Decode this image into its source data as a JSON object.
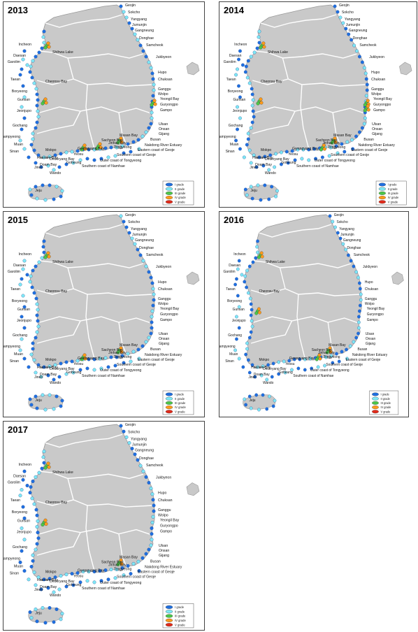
{
  "panels": [
    {
      "year": "2013",
      "legend_text": [
        "I grade",
        "II grade",
        "III grade",
        "IV grade",
        "V grade"
      ],
      "hot": [
        "Incheon",
        "Gunsan",
        "Yeongil Bay",
        "Masan Bay",
        "Gwangyang Bay",
        "Sacheon Bay"
      ]
    },
    {
      "year": "2014",
      "legend_text": [
        "I grade",
        "II grade",
        "III grade",
        "IV grade",
        "V grade"
      ],
      "hot": [
        "Incheon",
        "Gunsan",
        "Yeongil Bay",
        "Guryongpo",
        "Masan Bay",
        "Jinhae Bay"
      ]
    },
    {
      "year": "2015",
      "legend_text": [
        "I grade",
        "II grade",
        "III grade",
        "IV grade",
        "V grade"
      ],
      "hot": [
        "Incheon",
        "Masan Bay",
        "Gwangyang Bay"
      ]
    },
    {
      "year": "2016",
      "legend_text": [
        "I grade",
        "II grade",
        "III grade",
        "IV grade",
        "V grade"
      ],
      "hot": [
        "Incheon",
        "Gunsan",
        "Masan Bay",
        "Jinhae Bay"
      ]
    },
    {
      "year": "2017",
      "legend_text": [
        "I grade",
        "II grade",
        "III grade",
        "IV grade",
        "V grade"
      ],
      "hot": [
        "Incheon",
        "Masan Bay",
        "Gunsan"
      ]
    }
  ],
  "labels": [
    {
      "t": "Geojin",
      "side": "r"
    },
    {
      "t": "Sokcho",
      "side": "r"
    },
    {
      "t": "Yangyang",
      "side": "r"
    },
    {
      "t": "Jumunjin",
      "side": "r"
    },
    {
      "t": "Gangneung",
      "side": "r"
    },
    {
      "t": "Donghae",
      "side": "r"
    },
    {
      "t": "Samcheok",
      "side": "r"
    },
    {
      "t": "Jukbyeon",
      "side": "r"
    },
    {
      "t": "Hupo",
      "side": "r"
    },
    {
      "t": "Chuksan",
      "side": "r"
    },
    {
      "t": "Ganggu",
      "side": "r"
    },
    {
      "t": "Wolpo",
      "side": "r"
    },
    {
      "t": "Yeongil Bay",
      "side": "r"
    },
    {
      "t": "Guryongpo",
      "side": "r"
    },
    {
      "t": "Gampo",
      "side": "r"
    },
    {
      "t": "Ulsan",
      "side": "r"
    },
    {
      "t": "Onsan",
      "side": "r"
    },
    {
      "t": "Gijang",
      "side": "r"
    },
    {
      "t": "Busan",
      "side": "r"
    },
    {
      "t": "Nakdong River Estuary",
      "side": "r"
    },
    {
      "t": "Eastern coast of Geoje",
      "side": "r"
    },
    {
      "t": "Southern coast of Geoje",
      "side": "r"
    },
    {
      "t": "Outer coast of Tongyeong",
      "side": "r"
    },
    {
      "t": "Southern coast of Namhae",
      "side": "r"
    },
    {
      "t": "Masan Bay",
      "side": "r"
    },
    {
      "t": "Jinhae Bay",
      "side": "r"
    },
    {
      "t": "Sacheon Bay",
      "side": "r"
    },
    {
      "t": "Tongyeong",
      "side": "r"
    },
    {
      "t": "Gwangyang Bay",
      "side": "r"
    },
    {
      "t": "Yeosu",
      "side": "r"
    },
    {
      "t": "Deukryang Bay",
      "side": "r"
    },
    {
      "t": "Goheung",
      "side": "r"
    },
    {
      "t": "Doam Bay",
      "side": "r"
    },
    {
      "t": "Wando",
      "side": "r"
    },
    {
      "t": "Jindo",
      "side": "r"
    },
    {
      "t": "Haenam Bay",
      "side": "r"
    },
    {
      "t": "Sinan",
      "side": "l"
    },
    {
      "t": "Mokpo",
      "side": "r"
    },
    {
      "t": "Muan",
      "side": "l"
    },
    {
      "t": "Hampyeong",
      "side": "l"
    },
    {
      "t": "Gochang",
      "side": "l"
    },
    {
      "t": "Jeonjupo",
      "side": "l"
    },
    {
      "t": "Gunsan",
      "side": "l"
    },
    {
      "t": "Boryeong",
      "side": "l"
    },
    {
      "t": "Cheonsu Bay",
      "side": "r"
    },
    {
      "t": "Taean",
      "side": "l"
    },
    {
      "t": "Garolim",
      "side": "l"
    },
    {
      "t": "Daesan",
      "side": "l"
    },
    {
      "t": "Shihwa Lake",
      "side": "r"
    },
    {
      "t": "Incheon",
      "side": "l"
    },
    {
      "t": "Jeju",
      "side": "c"
    }
  ],
  "grade_colors": [
    "#1f6fe0",
    "#7fe8f5",
    "#4cc64a",
    "#ff9a1a",
    "#e02a1a"
  ],
  "map_colors": {
    "land": "#c9c9c9",
    "border": "#ffffff"
  }
}
